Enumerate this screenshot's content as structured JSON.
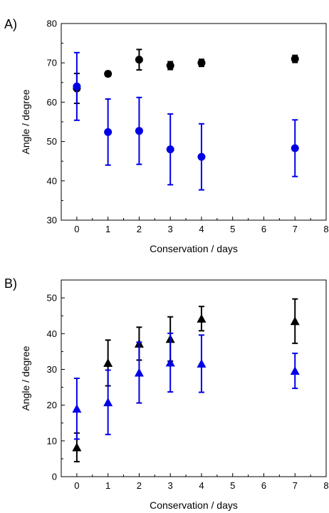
{
  "chart_data": [
    {
      "type": "scatter",
      "panel_label": "A)",
      "title": "",
      "xlabel": "Conservation / days",
      "ylabel": "Angle / degree",
      "xlim": [
        -0.5,
        8
      ],
      "ylim": [
        30,
        80
      ],
      "xticks": [
        0,
        1,
        2,
        3,
        4,
        5,
        6,
        7,
        8
      ],
      "yticks": [
        30,
        40,
        50,
        60,
        70,
        80
      ],
      "grid": false,
      "legend": "none",
      "series": [
        {
          "marker": "circle",
          "color": "#000000",
          "x": [
            0,
            1,
            2,
            3,
            4,
            7
          ],
          "y": [
            63.5,
            67.2,
            70.8,
            69.3,
            70.0,
            71.0
          ],
          "yerr": [
            3.8,
            0.6,
            2.6,
            1.0,
            0.9,
            0.9
          ]
        },
        {
          "marker": "circle",
          "color": "#0000e6",
          "x": [
            0,
            1,
            2,
            3,
            4,
            7
          ],
          "y": [
            64.0,
            52.4,
            52.7,
            48.0,
            46.1,
            48.3
          ],
          "yerr": [
            8.6,
            8.4,
            8.5,
            9.0,
            8.4,
            7.2
          ]
        }
      ]
    },
    {
      "type": "scatter",
      "panel_label": "B)",
      "title": "",
      "xlabel": "Conservation / days",
      "ylabel": "Angle / degree",
      "xlim": [
        -0.5,
        8
      ],
      "ylim": [
        0,
        55
      ],
      "xticks": [
        0,
        1,
        2,
        3,
        4,
        5,
        6,
        7,
        8
      ],
      "yticks": [
        0,
        10,
        20,
        30,
        40,
        50
      ],
      "grid": false,
      "legend": "none",
      "series": [
        {
          "marker": "triangle",
          "color": "#000000",
          "x": [
            0,
            1,
            2,
            3,
            4,
            7
          ],
          "y": [
            8.2,
            31.8,
            37.2,
            38.5,
            44.2,
            43.5
          ],
          "yerr": [
            4.0,
            6.4,
            4.6,
            6.2,
            3.4,
            6.2
          ]
        },
        {
          "marker": "triangle",
          "color": "#0000e6",
          "x": [
            0,
            1,
            2,
            3,
            4,
            7
          ],
          "y": [
            19.0,
            20.8,
            29.1,
            31.9,
            31.6,
            29.6
          ],
          "yerr": [
            8.5,
            9.0,
            8.5,
            8.2,
            8.0,
            4.9
          ]
        }
      ]
    }
  ]
}
